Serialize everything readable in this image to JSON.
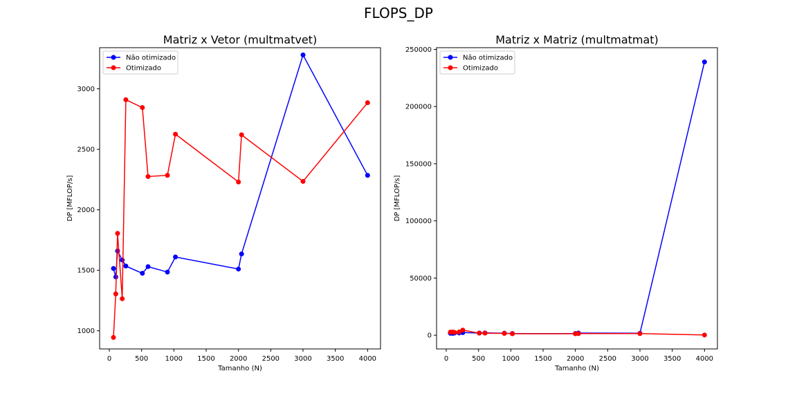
{
  "figure": {
    "suptitle": "FLOPS_DP"
  },
  "colors": {
    "nao_otimizado": "#0000ff",
    "otimizado": "#ff0000",
    "axes": "#000000",
    "legend_border": "#cccccc"
  },
  "chart_data": [
    {
      "type": "line",
      "title": "Matriz x Vetor (multmatvet)",
      "xlabel": "Tamanho (N)",
      "ylabel": "DP [MFLOP/s]",
      "xlim": [
        -150,
        4200
      ],
      "ylim": [
        850,
        3340
      ],
      "xticks": [
        0,
        500,
        1000,
        1500,
        2000,
        2500,
        3000,
        3500,
        4000
      ],
      "xtick_labels": [
        "0",
        "500",
        "1000",
        "1500",
        "2000",
        "2500",
        "3000",
        "3500",
        "4000"
      ],
      "yticks": [
        1000,
        1500,
        2000,
        2500,
        3000
      ],
      "ytick_labels": [
        "1000",
        "1500",
        "2000",
        "2500",
        "3000"
      ],
      "grid": false,
      "legend": "upper-left",
      "x": [
        64,
        100,
        128,
        200,
        256,
        512,
        600,
        900,
        1024,
        2000,
        2048,
        3000,
        4000
      ],
      "series": [
        {
          "name": "Não otimizado",
          "color": "#0000ff",
          "marker": "circle",
          "values": [
            1515,
            1445,
            1660,
            1585,
            1535,
            1475,
            1530,
            1485,
            1610,
            1510,
            1635,
            3280,
            2285
          ]
        },
        {
          "name": "Otimizado",
          "color": "#ff0000",
          "marker": "circle",
          "values": [
            945,
            1305,
            1805,
            1265,
            2910,
            2845,
            2275,
            2285,
            2625,
            2230,
            2620,
            2235,
            2885
          ]
        }
      ]
    },
    {
      "type": "line",
      "title": "Matriz x Matriz (multmatmat)",
      "xlabel": "Tamanho (N)",
      "ylabel": "DP [MFLOP/s]",
      "xlim": [
        -150,
        4200
      ],
      "ylim": [
        -12000,
        251500
      ],
      "xticks": [
        0,
        500,
        1000,
        1500,
        2000,
        2500,
        3000,
        3500,
        4000
      ],
      "xtick_labels": [
        "0",
        "500",
        "1000",
        "1500",
        "2000",
        "2500",
        "3000",
        "3500",
        "4000"
      ],
      "yticks": [
        0,
        50000,
        100000,
        150000,
        200000,
        250000
      ],
      "ytick_labels": [
        "0",
        "50000",
        "100000",
        "150000",
        "200000",
        "250000"
      ],
      "grid": false,
      "legend": "upper-left",
      "x": [
        64,
        100,
        128,
        200,
        256,
        512,
        600,
        900,
        1024,
        2000,
        2048,
        3000,
        4000
      ],
      "series": [
        {
          "name": "Não otimizado",
          "color": "#0000ff",
          "marker": "circle",
          "values": [
            1700,
            1600,
            1900,
            2000,
            2300,
            1900,
            2000,
            1800,
            1500,
            1500,
            1900,
            1700,
            239000
          ]
        },
        {
          "name": "Otimizado",
          "color": "#ff0000",
          "marker": "circle",
          "values": [
            2700,
            2800,
            2500,
            2900,
            4500,
            1800,
            1800,
            1600,
            1300,
            1300,
            1400,
            1400,
            200
          ]
        }
      ]
    }
  ]
}
